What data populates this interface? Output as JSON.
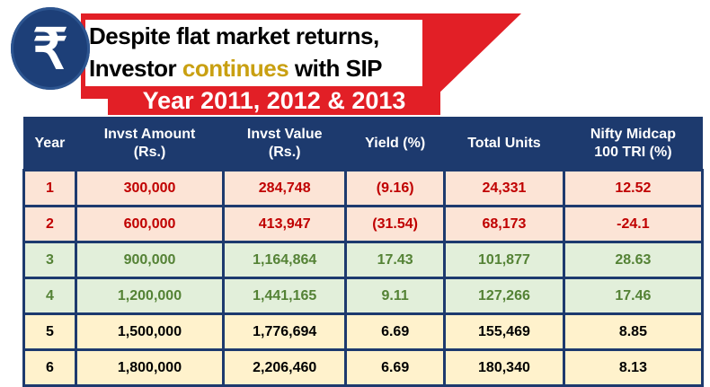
{
  "title": {
    "line1": "Despite flat market returns,",
    "line2_a": "Investor ",
    "line2_b": "continues",
    "line2_c": " with SIP",
    "years": "Year 2011, 2012 & 2013",
    "icon": "rupee-icon",
    "symbol": "₹"
  },
  "table": {
    "headers": [
      [
        "Year",
        ""
      ],
      [
        "Invst Amount",
        "(Rs.)"
      ],
      [
        "Invst Value",
        "(Rs.)"
      ],
      [
        "Yield (%)",
        ""
      ],
      [
        "Total Units",
        ""
      ],
      [
        "Nifty Midcap",
        "100 TRI (%)"
      ]
    ],
    "rows": [
      {
        "style": "red",
        "cells": [
          "1",
          "300,000",
          "284,748",
          "(9.16)",
          "24,331",
          "12.52"
        ]
      },
      {
        "style": "red",
        "cells": [
          "2",
          "600,000",
          "413,947",
          "(31.54)",
          "68,173",
          "-24.1"
        ]
      },
      {
        "style": "green",
        "cells": [
          "3",
          "900,000",
          "1,164,864",
          "17.43",
          "101,877",
          "28.63"
        ]
      },
      {
        "style": "green",
        "cells": [
          "4",
          "1,200,000",
          "1,441,165",
          "9.11",
          "127,266",
          "17.46"
        ]
      },
      {
        "style": "yel",
        "cells": [
          "5",
          "1,500,000",
          "1,776,694",
          "6.69",
          "155,469",
          "8.85"
        ]
      },
      {
        "style": "yel",
        "cells": [
          "6",
          "1,800,000",
          "2,206,460",
          "6.69",
          "180,340",
          "8.13"
        ]
      }
    ]
  },
  "colors": {
    "red": "#e21f26",
    "navy": "#1d3a6e",
    "gold": "#c9a012"
  }
}
